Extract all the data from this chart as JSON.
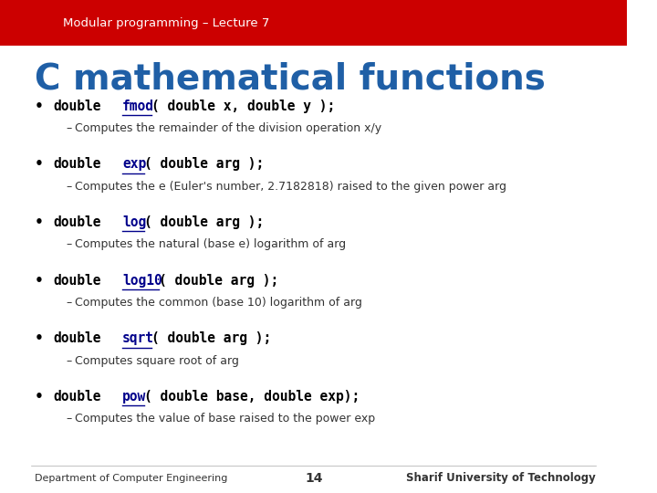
{
  "header_text": "Modular programming – Lecture 7",
  "header_bg": "#cc0000",
  "header_text_color": "#ffffff",
  "bg_color": "#ffffff",
  "title": "C mathematical functions",
  "title_color": "#1f5fa6",
  "bullet_color": "#000000",
  "func_color": "#00008b",
  "desc_color": "#333333",
  "items": [
    {
      "prefix": "double",
      "func": "fmod",
      "suffix": "( double x, double y );",
      "desc": "Computes the remainder of the division operation x/y"
    },
    {
      "prefix": "double",
      "func": "exp",
      "suffix": "( double arg );",
      "desc": "Computes the e (Euler's number, 2.7182818) raised to the given power arg"
    },
    {
      "prefix": "double",
      "func": "log",
      "suffix": "( double arg );",
      "desc": "Computes the natural (base e) logarithm of arg"
    },
    {
      "prefix": "double",
      "func": "log10",
      "suffix": "( double arg );",
      "desc": "Computes the common (base 10) logarithm of arg"
    },
    {
      "prefix": "double",
      "func": "sqrt",
      "suffix": "( double arg );",
      "desc": "Computes square root of arg"
    },
    {
      "prefix": "double",
      "func": "pow",
      "suffix": "( double base, double exp);",
      "desc": "Computes the value of base raised to the power exp"
    }
  ],
  "footer_left": "Department of Computer Engineering",
  "footer_center": "14",
  "footer_right": "Sharif University of Technology"
}
